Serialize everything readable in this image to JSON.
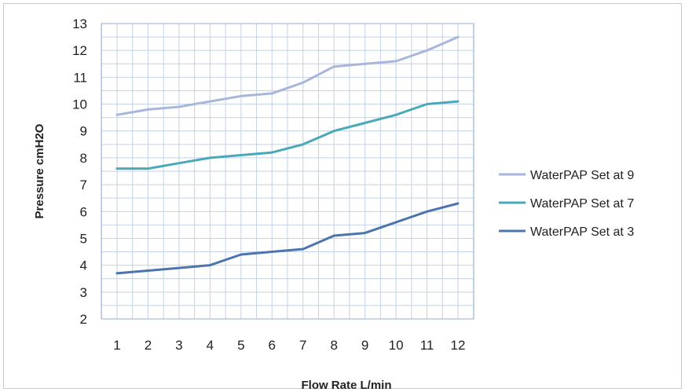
{
  "chart_data": {
    "type": "line",
    "title": "",
    "xlabel": "Flow Rate L/min",
    "ylabel": "Pressure cmH2O",
    "x": [
      1,
      2,
      3,
      4,
      5,
      6,
      7,
      8,
      9,
      10,
      11,
      12
    ],
    "ylim": [
      2,
      13
    ],
    "yticks": [
      2,
      3,
      4,
      5,
      6,
      7,
      8,
      9,
      10,
      11,
      12,
      13
    ],
    "grid": true,
    "legend_position": "right",
    "series": [
      {
        "name": "WaterPAP Set at 9",
        "color": "#a9b6dc",
        "values": [
          9.6,
          9.8,
          9.9,
          10.1,
          10.3,
          10.4,
          10.8,
          11.4,
          11.5,
          11.6,
          12.0,
          12.5
        ]
      },
      {
        "name": "WaterPAP Set at 7",
        "color": "#4aa9b9",
        "values": [
          7.6,
          7.6,
          7.8,
          8.0,
          8.1,
          8.2,
          8.5,
          9.0,
          9.3,
          9.6,
          10.0,
          10.1
        ]
      },
      {
        "name": "WaterPAP Set at 3",
        "color": "#4c74ad",
        "values": [
          3.7,
          3.8,
          3.9,
          4.0,
          4.4,
          4.5,
          4.6,
          5.1,
          5.2,
          5.6,
          6.0,
          6.3
        ]
      }
    ]
  }
}
